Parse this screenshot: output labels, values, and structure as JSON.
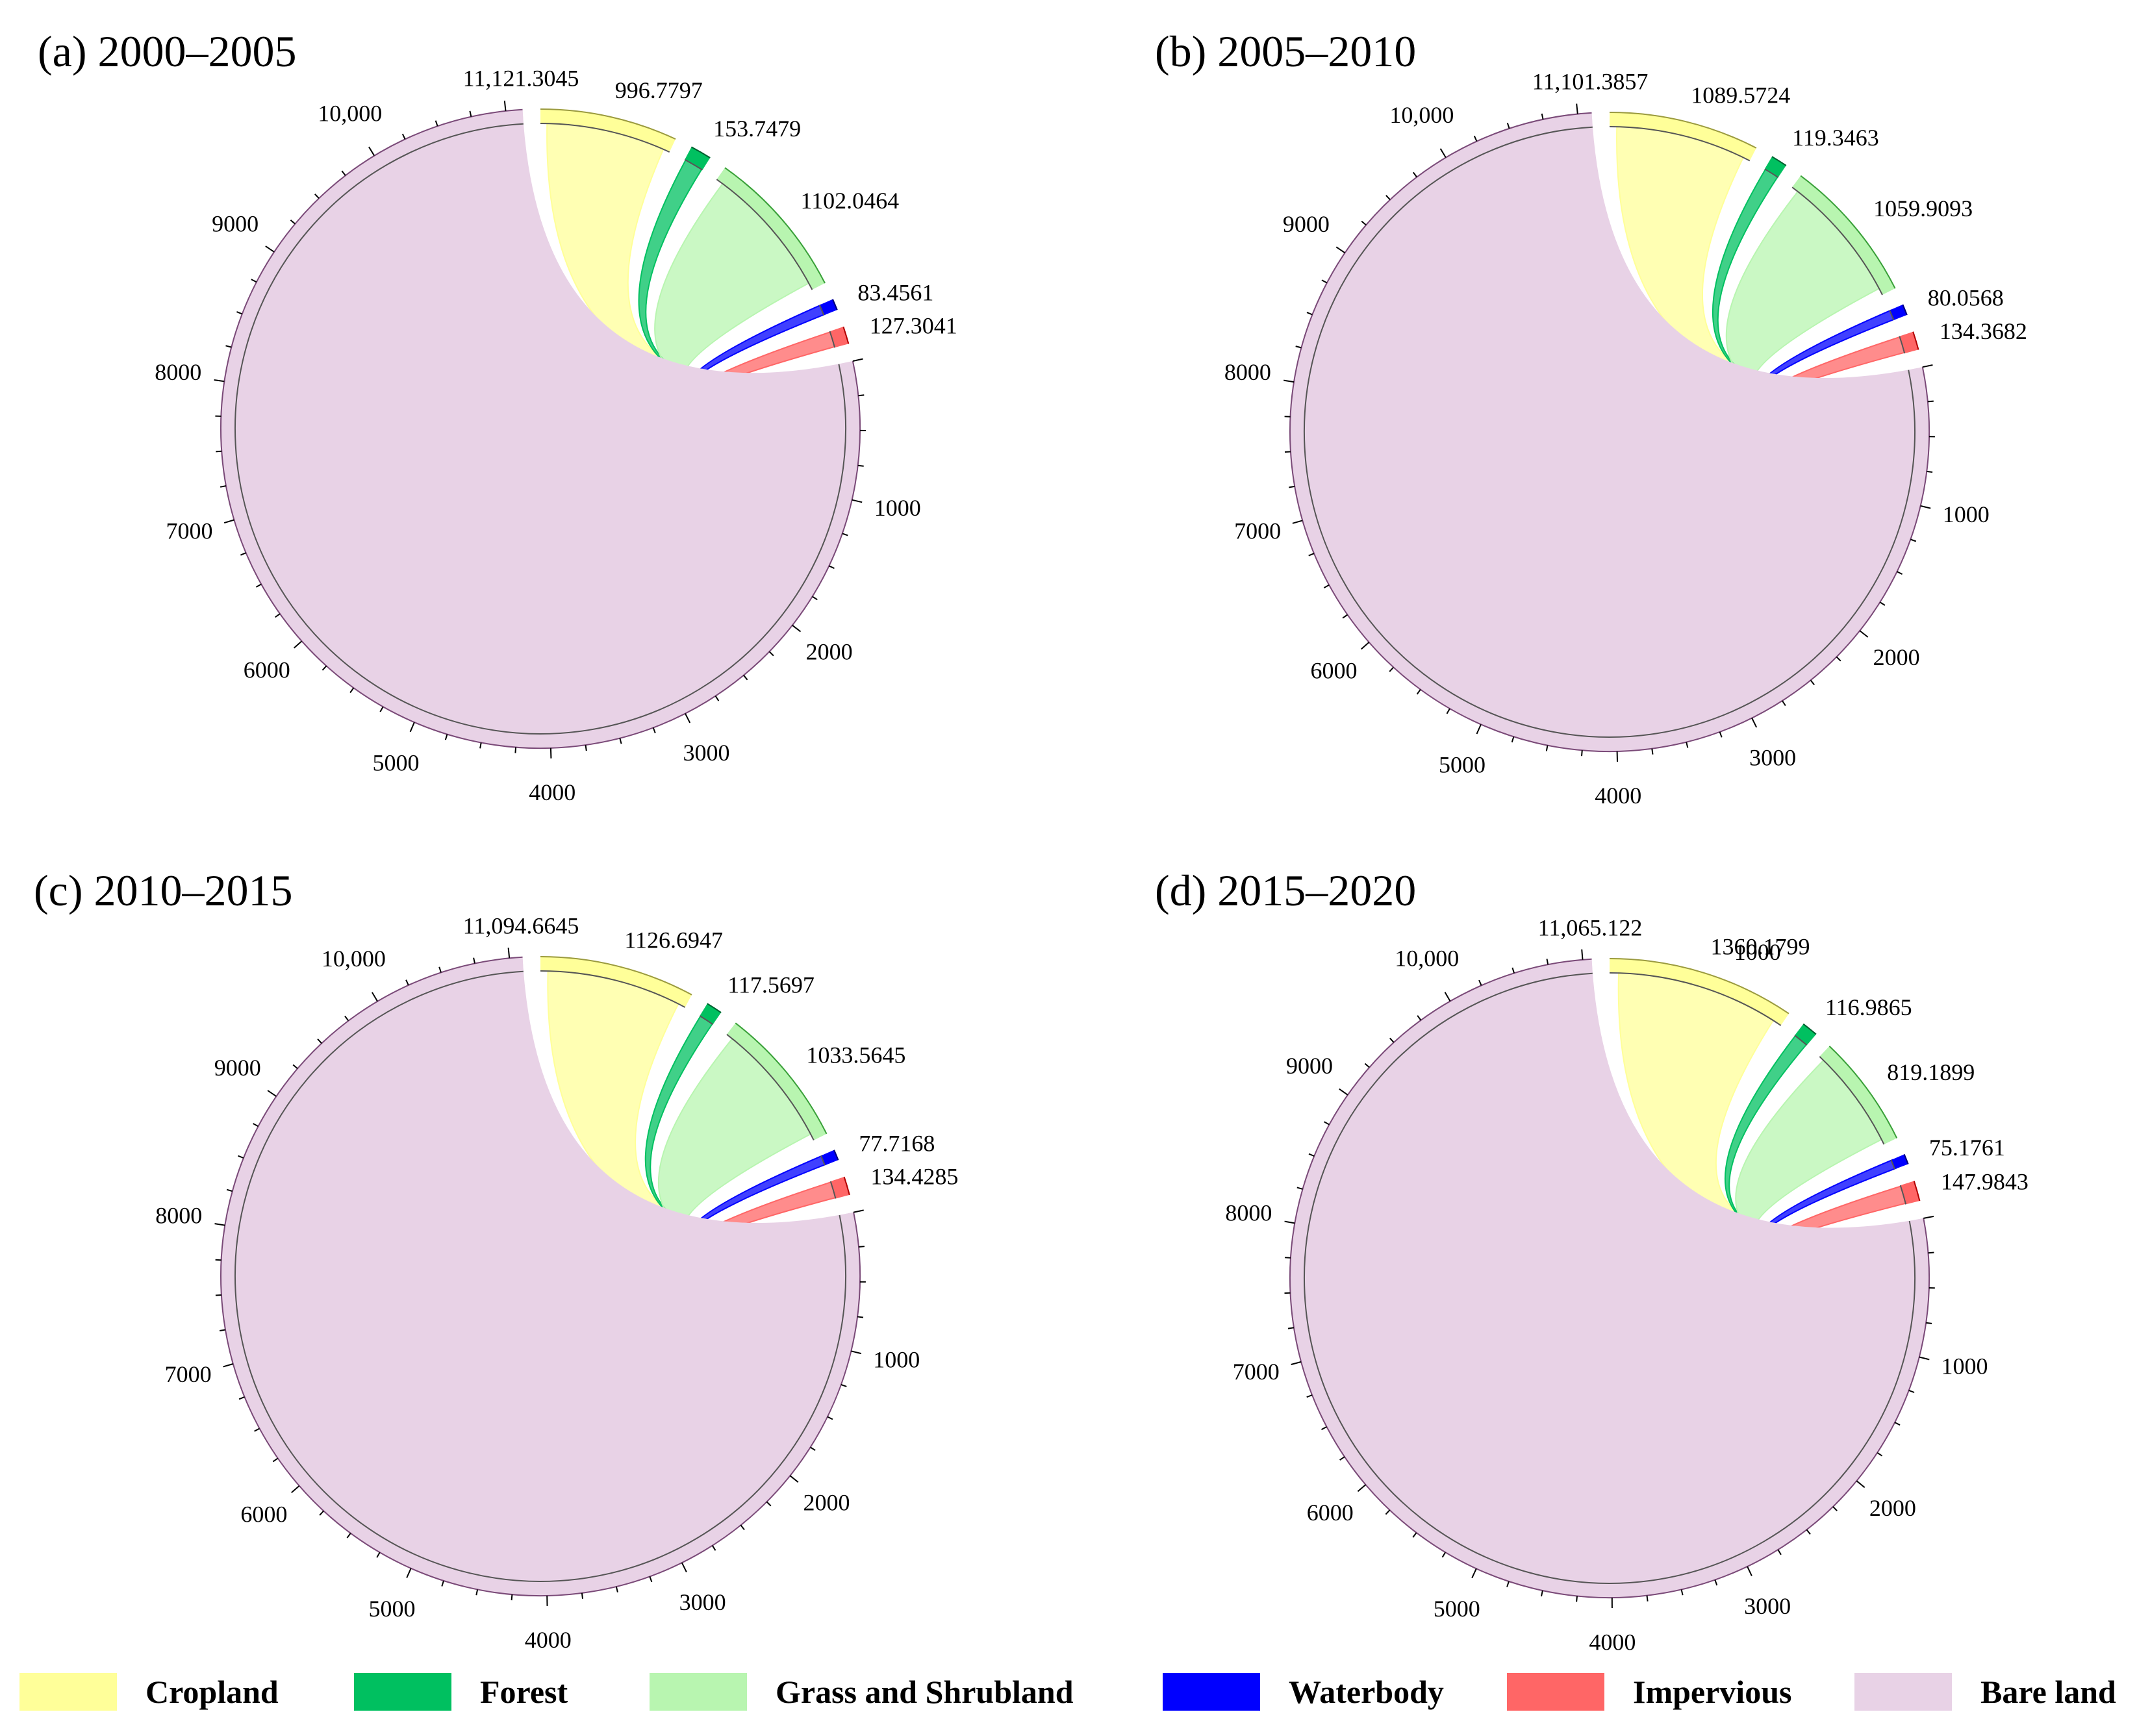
{
  "legend": [
    {
      "label": "Cropland",
      "color": "#ffff99"
    },
    {
      "label": "Forest",
      "color": "#00c060"
    },
    {
      "label": "Grass and Shrubland",
      "color": "#b8f5b0"
    },
    {
      "label": "Waterbody",
      "color": "#0000ff"
    },
    {
      "label": "Impervious",
      "color": "#ff6666"
    },
    {
      "label": "Bare land",
      "color": "#e8d2e6"
    }
  ],
  "panels": [
    {
      "title": "(a) 2000–2005"
    },
    {
      "title": "(b) 2005–2010"
    },
    {
      "title": "(c) 2010–2015"
    },
    {
      "title": "(d) 2015–2020"
    }
  ],
  "chart_data": [
    {
      "type": "chord",
      "title": "(a) 2000–2005",
      "categories": [
        "Cropland",
        "Forest",
        "Grass and Shrubland",
        "Waterbody",
        "Impervious",
        "Bare land"
      ],
      "values": [
        996.7797,
        153.7479,
        1102.0464,
        83.4561,
        127.3041,
        11121.3045
      ],
      "value_labels": [
        "996.7797",
        "153.7479",
        "1102.0464",
        "83.4561",
        "127.3041",
        "11,121.3045"
      ],
      "tick_labels": [
        "1000",
        "2000",
        "3000",
        "4000",
        "5000",
        "6000",
        "7000",
        "8000",
        "9000",
        "10,000"
      ]
    },
    {
      "type": "chord",
      "title": "(b) 2005–2010",
      "categories": [
        "Cropland",
        "Forest",
        "Grass and Shrubland",
        "Waterbody",
        "Impervious",
        "Bare land"
      ],
      "values": [
        1089.5724,
        119.3463,
        1059.9093,
        80.0568,
        134.3682,
        11101.3857
      ],
      "value_labels": [
        "1089.5724",
        "119.3463",
        "1059.9093",
        "80.0568",
        "134.3682",
        "11,101.3857"
      ],
      "tick_labels": [
        "1000",
        "2000",
        "3000",
        "4000",
        "5000",
        "6000",
        "7000",
        "8000",
        "9000",
        "10,000"
      ]
    },
    {
      "type": "chord",
      "title": "(c) 2010–2015",
      "categories": [
        "Cropland",
        "Forest",
        "Grass and Shrubland",
        "Waterbody",
        "Impervious",
        "Bare land"
      ],
      "values": [
        1126.6947,
        117.5697,
        1033.5645,
        77.7168,
        134.4285,
        11094.6645
      ],
      "value_labels": [
        "1126.6947",
        "117.5697",
        "1033.5645",
        "77.7168",
        "134.4285",
        "11,094.6645"
      ],
      "tick_labels": [
        "1000",
        "2000",
        "3000",
        "4000",
        "5000",
        "6000",
        "7000",
        "8000",
        "9000",
        "10,000"
      ]
    },
    {
      "type": "chord",
      "title": "(d) 2015–2020",
      "categories": [
        "Cropland",
        "Forest",
        "Grass and Shrubland",
        "Waterbody",
        "Impervious",
        "Bare land"
      ],
      "values": [
        1360.1799,
        116.9865,
        819.1899,
        75.1761,
        147.9843,
        11065.122
      ],
      "value_labels": [
        "1360.1799",
        "116.9865",
        "819.1899",
        "75.1761",
        "147.9843",
        "11,065.122"
      ],
      "tick_labels": [
        "1000",
        "2000",
        "3000",
        "4000",
        "5000",
        "6000",
        "7000",
        "8000",
        "9000",
        "10,000"
      ],
      "extra_tick_labels": [
        "1000"
      ]
    }
  ]
}
